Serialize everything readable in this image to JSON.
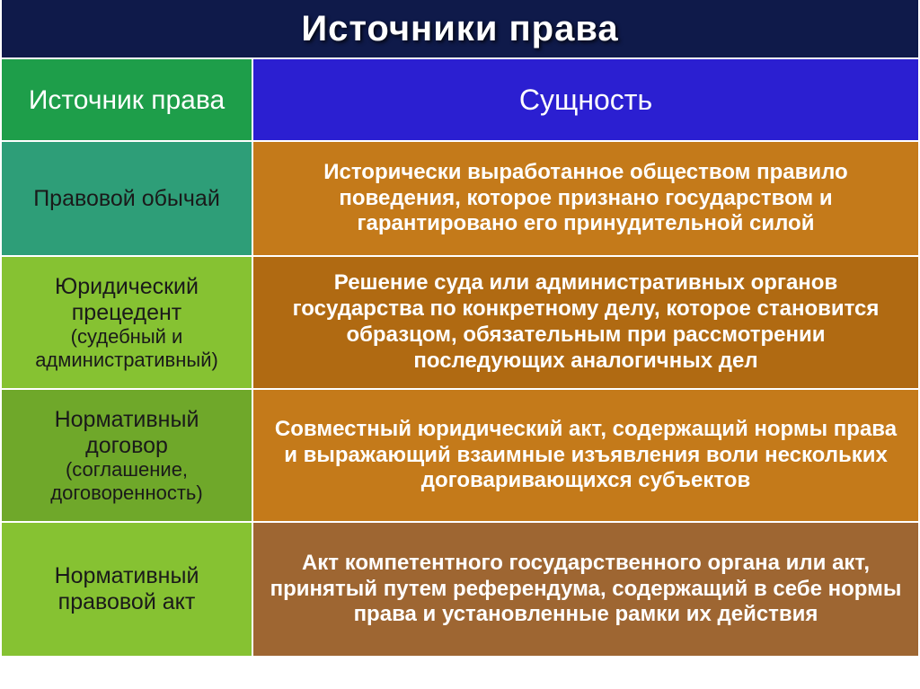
{
  "title": "Источники права",
  "title_bg": "#0f1a4a",
  "header": {
    "left": "Источник права",
    "right": "Сущность",
    "left_bg": "#1e9e4a",
    "right_bg": "#2b1fd1"
  },
  "rows": [
    {
      "height": 128,
      "left_bg": "#2e9e78",
      "right_bg": "#c47a1a",
      "label_main": "Правовой обычай",
      "label_sub": "",
      "label_color": "#1a1a1a",
      "desc": "Исторически выработанное обществом правило поведения, которое признано государством и гарантировано его принудительной силой"
    },
    {
      "height": 148,
      "left_bg": "#86c232",
      "right_bg": "#b06a12",
      "label_main": "Юридический прецедент",
      "label_sub": "(судебный и административный)",
      "label_color": "#1a1a1a",
      "desc": "Решение суда или административных органов государства по конкретному делу, которое становится образцом, обязательным при рассмотрении последующих аналогичных дел"
    },
    {
      "height": 148,
      "left_bg": "#6fa82a",
      "right_bg": "#c47a1a",
      "label_main": "Нормативный договор",
      "label_sub": "(соглашение, договоренность)",
      "label_color": "#1a1a1a",
      "desc": "Совместный юридический акт, содержащий нормы права и выражающий взаимные изъявления воли нескольких договаривающихся субъектов"
    },
    {
      "height": 148,
      "left_bg": "#86c232",
      "right_bg": "#9e6632",
      "label_main": "Нормативный правовой акт",
      "label_sub": "",
      "label_color": "#1a1a1a",
      "desc": "Акт компетентного государственного органа или акт, принятый путем референдума, содержащий в себе нормы права и установленные рамки их действия"
    }
  ],
  "header_row_height": 92
}
